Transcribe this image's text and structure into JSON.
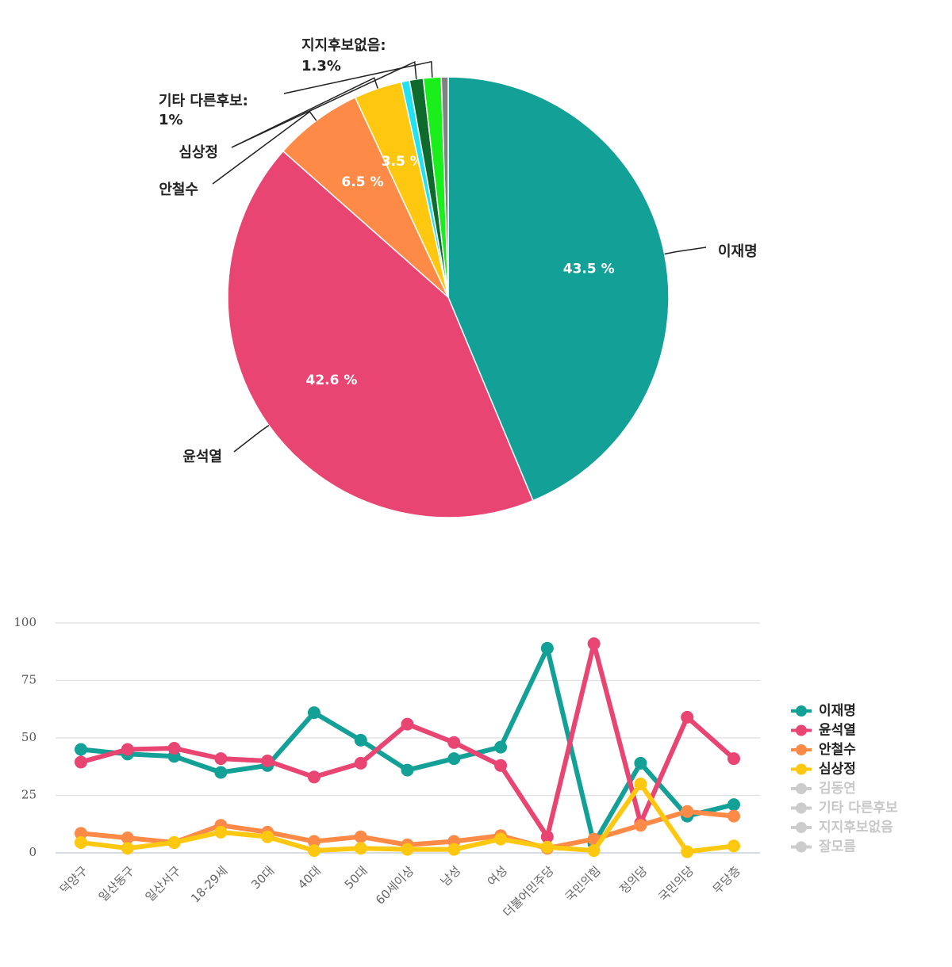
{
  "chart_data": [
    {
      "type": "pie",
      "categories": [
        "이재명",
        "윤석열",
        "안철수",
        "심상정",
        "김동연",
        "기타 다른후보",
        "지지후보없음",
        "잘모름"
      ],
      "values": [
        43.5,
        42.6,
        6.5,
        3.5,
        0.6,
        1,
        1.3,
        0.5
      ],
      "value_labels": [
        "43.5 %",
        "42.6 %",
        "6.5 %",
        "3.5 %",
        null,
        "1%",
        "1.3%",
        null
      ],
      "label_texts": [
        "이재명",
        "윤석열",
        "안철수",
        "심상정",
        null,
        "기타 다른후보:",
        "지지후보없음:",
        null
      ],
      "colors": [
        "#13a096",
        "#e84573",
        "#fd8a46",
        "#fec811",
        "#22e1f0",
        "#0f6b2c",
        "#1bef1b",
        "#808080"
      ]
    },
    {
      "type": "line",
      "categories": [
        "덕양구",
        "일산동구",
        "일산서구",
        "18-29세",
        "30대",
        "40대",
        "50대",
        "60세이상",
        "남성",
        "여성",
        "더불어민주당",
        "국민의힘",
        "정의당",
        "국민의당",
        "무당층"
      ],
      "ylim": [
        0,
        100
      ],
      "yticks": [
        0,
        25,
        50,
        75,
        100
      ],
      "grid": true,
      "legend": "right",
      "series": [
        {
          "name": "이재명",
          "color": "#13a096",
          "values": [
            45,
            43,
            42,
            35,
            38,
            61,
            49,
            36,
            41,
            46,
            89,
            4,
            39,
            16,
            21
          ]
        },
        {
          "name": "윤석열",
          "color": "#e84573",
          "values": [
            39.5,
            45,
            45.5,
            41,
            40,
            33,
            39,
            56,
            48,
            38,
            7,
            91,
            13,
            59,
            41
          ]
        },
        {
          "name": "안철수",
          "color": "#fd8a46",
          "values": [
            8.5,
            6.5,
            4.5,
            12,
            9,
            5,
            7,
            3.5,
            5,
            7.5,
            2,
            6,
            12,
            18,
            16
          ]
        },
        {
          "name": "심상정",
          "color": "#fec811",
          "values": [
            4.5,
            2,
            4.5,
            9,
            7,
            1,
            2,
            1.5,
            1.5,
            6,
            2.5,
            1,
            30,
            0.5,
            3
          ]
        }
      ],
      "hidden_series": [
        {
          "name": "김동연",
          "color": "#cccccc"
        },
        {
          "name": "기타 다른후보",
          "color": "#cccccc"
        },
        {
          "name": "지지후보없음",
          "color": "#cccccc"
        },
        {
          "name": "잘모름",
          "color": "#cccccc"
        }
      ]
    }
  ]
}
